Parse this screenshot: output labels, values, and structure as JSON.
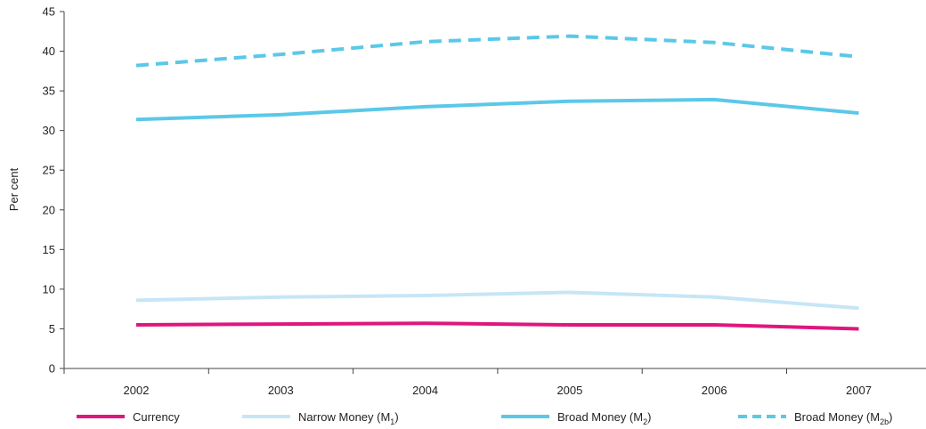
{
  "chart_data": {
    "type": "line",
    "ylabel": "Per cent",
    "ylim": [
      0,
      45
    ],
    "yticks": [
      "0",
      "5",
      "10",
      "15",
      "20",
      "25",
      "30",
      "35",
      "40",
      "45"
    ],
    "categories": [
      "2002",
      "2003",
      "2004",
      "2005",
      "2006",
      "2007"
    ],
    "grid": false,
    "legend_position": "bottom",
    "series": [
      {
        "name": "Currency",
        "name_main": "Currency",
        "name_sub": "",
        "name_end": "",
        "color": "#e0167e",
        "dashed": false,
        "values": [
          5.5,
          5.6,
          5.7,
          5.5,
          5.5,
          5.0
        ]
      },
      {
        "name": "Narrow Money (M1)",
        "name_main": "Narrow Money (M",
        "name_sub": "1",
        "name_end": ")",
        "color": "#c6e6f6",
        "dashed": false,
        "values": [
          8.6,
          9.0,
          9.2,
          9.6,
          9.0,
          7.6
        ]
      },
      {
        "name": "Broad Money (M2)",
        "name_main": "Broad Money (M",
        "name_sub": "2",
        "name_end": ")",
        "color": "#5bc8e8",
        "dashed": false,
        "values": [
          31.4,
          32.0,
          33.0,
          33.7,
          33.9,
          32.2
        ]
      },
      {
        "name": "Broad Money (M2b)",
        "name_main": "Broad Money (M",
        "name_sub": "2b",
        "name_end": ")",
        "color": "#5bc8e8",
        "dashed": true,
        "values": [
          38.2,
          39.6,
          41.2,
          41.9,
          41.1,
          39.3
        ]
      }
    ]
  }
}
